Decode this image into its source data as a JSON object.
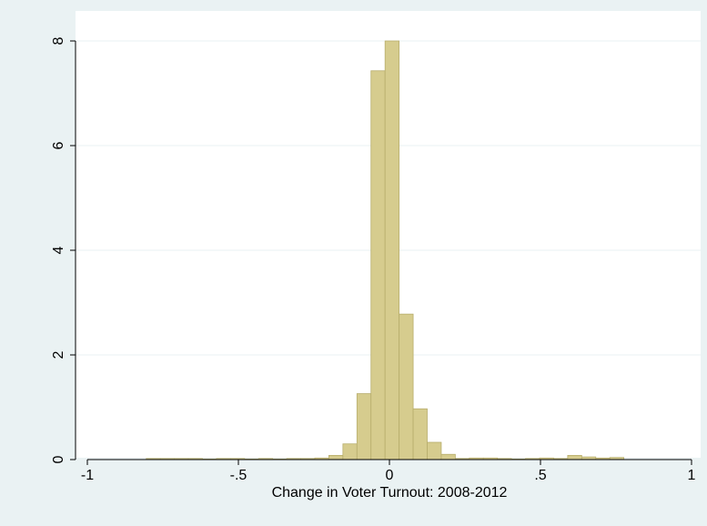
{
  "chart_data": {
    "type": "bar",
    "subtype": "histogram",
    "title": "",
    "xlabel": "Change in Voter Turnout: 2008-2012",
    "ylabel": "",
    "xlim": [
      -1,
      1
    ],
    "ylim": [
      0,
      8
    ],
    "x_ticks": [
      -1,
      -0.5,
      0,
      0.5,
      1
    ],
    "x_tick_labels": [
      "-1",
      "-.5",
      "0",
      ".5",
      "1"
    ],
    "y_ticks": [
      0,
      2,
      4,
      6,
      8
    ],
    "y_tick_labels": [
      "0",
      "2",
      "4",
      "6",
      "8"
    ],
    "grid": true,
    "legend": "none",
    "bin_width": 0.0465,
    "bins": [
      {
        "x_start": -0.805,
        "x_end": -0.7585,
        "value": 0.02
      },
      {
        "x_start": -0.7585,
        "x_end": -0.712,
        "value": 0.02
      },
      {
        "x_start": -0.712,
        "x_end": -0.6655,
        "value": 0.02
      },
      {
        "x_start": -0.6655,
        "x_end": -0.619,
        "value": 0.02
      },
      {
        "x_start": -0.619,
        "x_end": -0.5725,
        "value": 0.01
      },
      {
        "x_start": -0.5725,
        "x_end": -0.526,
        "value": 0.02
      },
      {
        "x_start": -0.526,
        "x_end": -0.4795,
        "value": 0.02
      },
      {
        "x_start": -0.4795,
        "x_end": -0.433,
        "value": 0.01
      },
      {
        "x_start": -0.433,
        "x_end": -0.3865,
        "value": 0.02
      },
      {
        "x_start": -0.3865,
        "x_end": -0.34,
        "value": 0.01
      },
      {
        "x_start": -0.34,
        "x_end": -0.2935,
        "value": 0.02
      },
      {
        "x_start": -0.2935,
        "x_end": -0.247,
        "value": 0.02
      },
      {
        "x_start": -0.247,
        "x_end": -0.2005,
        "value": 0.03
      },
      {
        "x_start": -0.2005,
        "x_end": -0.154,
        "value": 0.08
      },
      {
        "x_start": -0.154,
        "x_end": -0.1075,
        "value": 0.3
      },
      {
        "x_start": -0.1075,
        "x_end": -0.061,
        "value": 1.26
      },
      {
        "x_start": -0.061,
        "x_end": -0.0145,
        "value": 7.43
      },
      {
        "x_start": -0.0145,
        "x_end": 0.032,
        "value": 8.0
      },
      {
        "x_start": 0.032,
        "x_end": 0.0785,
        "value": 2.78
      },
      {
        "x_start": 0.0785,
        "x_end": 0.125,
        "value": 0.97
      },
      {
        "x_start": 0.125,
        "x_end": 0.1715,
        "value": 0.33
      },
      {
        "x_start": 0.1715,
        "x_end": 0.218,
        "value": 0.1
      },
      {
        "x_start": 0.218,
        "x_end": 0.2645,
        "value": 0.02
      },
      {
        "x_start": 0.2645,
        "x_end": 0.311,
        "value": 0.03
      },
      {
        "x_start": 0.311,
        "x_end": 0.3575,
        "value": 0.03
      },
      {
        "x_start": 0.3575,
        "x_end": 0.404,
        "value": 0.02
      },
      {
        "x_start": 0.404,
        "x_end": 0.4505,
        "value": 0.01
      },
      {
        "x_start": 0.4505,
        "x_end": 0.497,
        "value": 0.02
      },
      {
        "x_start": 0.497,
        "x_end": 0.5435,
        "value": 0.03
      },
      {
        "x_start": 0.5435,
        "x_end": 0.59,
        "value": 0.02
      },
      {
        "x_start": 0.59,
        "x_end": 0.6365,
        "value": 0.08
      },
      {
        "x_start": 0.6365,
        "x_end": 0.683,
        "value": 0.05
      },
      {
        "x_start": 0.683,
        "x_end": 0.7295,
        "value": 0.03
      },
      {
        "x_start": 0.7295,
        "x_end": 0.776,
        "value": 0.04
      }
    ],
    "colors": {
      "outer_background": "#eaf2f3",
      "plot_background": "#ffffff",
      "bar_fill": "#d6cc8e",
      "bar_stroke": "#b7ad6c",
      "grid": "#eaf2f3",
      "axis": "#000000"
    }
  }
}
